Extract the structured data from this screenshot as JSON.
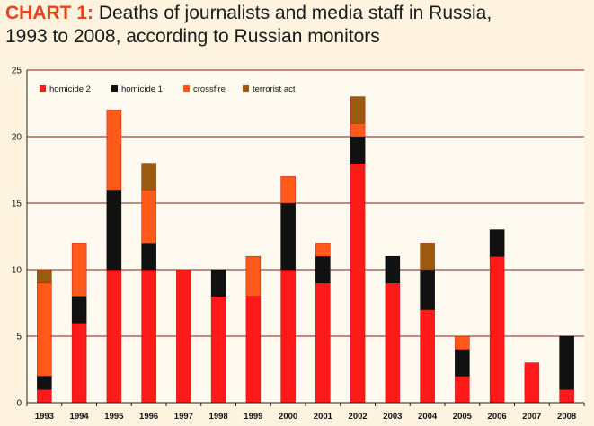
{
  "header": {
    "lead": "CHART 1:",
    "line1": " Deaths of journalists and media staff in Russia,",
    "line2": "1993 to 2008, according to Russian monitors"
  },
  "chart_data": {
    "type": "bar",
    "stacked": true,
    "title": "CHART 1: Deaths of journalists and media staff in Russia, 1993 to 2008, according to Russian monitors",
    "categories": [
      "1993",
      "1994",
      "1995",
      "1996",
      "1997",
      "1998",
      "1999",
      "2000",
      "2001",
      "2002",
      "2003",
      "2004",
      "2005",
      "2006",
      "2007",
      "2008"
    ],
    "series": [
      {
        "name": "homicide 2",
        "color": "#ff1a1a",
        "values": [
          1,
          6,
          10,
          10,
          10,
          8,
          8,
          10,
          9,
          18,
          9,
          7,
          2,
          11,
          3,
          1
        ]
      },
      {
        "name": "homicide 1",
        "color": "#111111",
        "values": [
          1,
          2,
          6,
          2,
          0,
          2,
          0,
          5,
          2,
          2,
          2,
          3,
          2,
          2,
          0,
          4
        ]
      },
      {
        "name": "crossfire",
        "color": "#ff5a1a",
        "values": [
          7,
          4,
          6,
          4,
          0,
          0,
          3,
          2,
          1,
          1,
          0,
          0,
          1,
          0,
          0,
          0
        ]
      },
      {
        "name": "terrorist act",
        "color": "#9b5a10",
        "values": [
          1,
          0,
          0,
          2,
          0,
          0,
          0,
          0,
          0,
          2,
          0,
          2,
          0,
          0,
          0,
          0
        ]
      }
    ],
    "ylim": [
      0,
      25
    ],
    "yticks": [
      0,
      5,
      10,
      15,
      20,
      25
    ],
    "grid": true,
    "gridline_color": "#8a1a10",
    "legend_position": "top-left"
  }
}
